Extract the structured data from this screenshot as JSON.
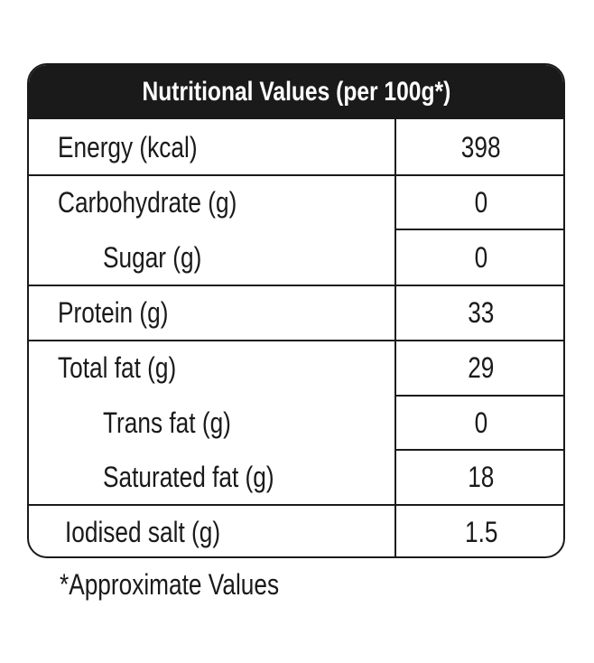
{
  "table": {
    "title": "Nutritional Values (per 100g*)",
    "rows": [
      {
        "label": "Energy (kcal)",
        "value": "398"
      },
      {
        "label": "Carbohydrate (g)",
        "value": "0"
      },
      {
        "label": "Sugar (g)",
        "value": "0"
      },
      {
        "label": "Protein (g)",
        "value": "33"
      },
      {
        "label": "Total fat (g)",
        "value": "29"
      },
      {
        "label": "Trans fat (g)",
        "value": "0"
      },
      {
        "label": "Saturated fat (g)",
        "value": "18"
      },
      {
        "label": "Iodised salt (g)",
        "value": "1.5"
      }
    ]
  },
  "footnote": "*Approximate Values"
}
